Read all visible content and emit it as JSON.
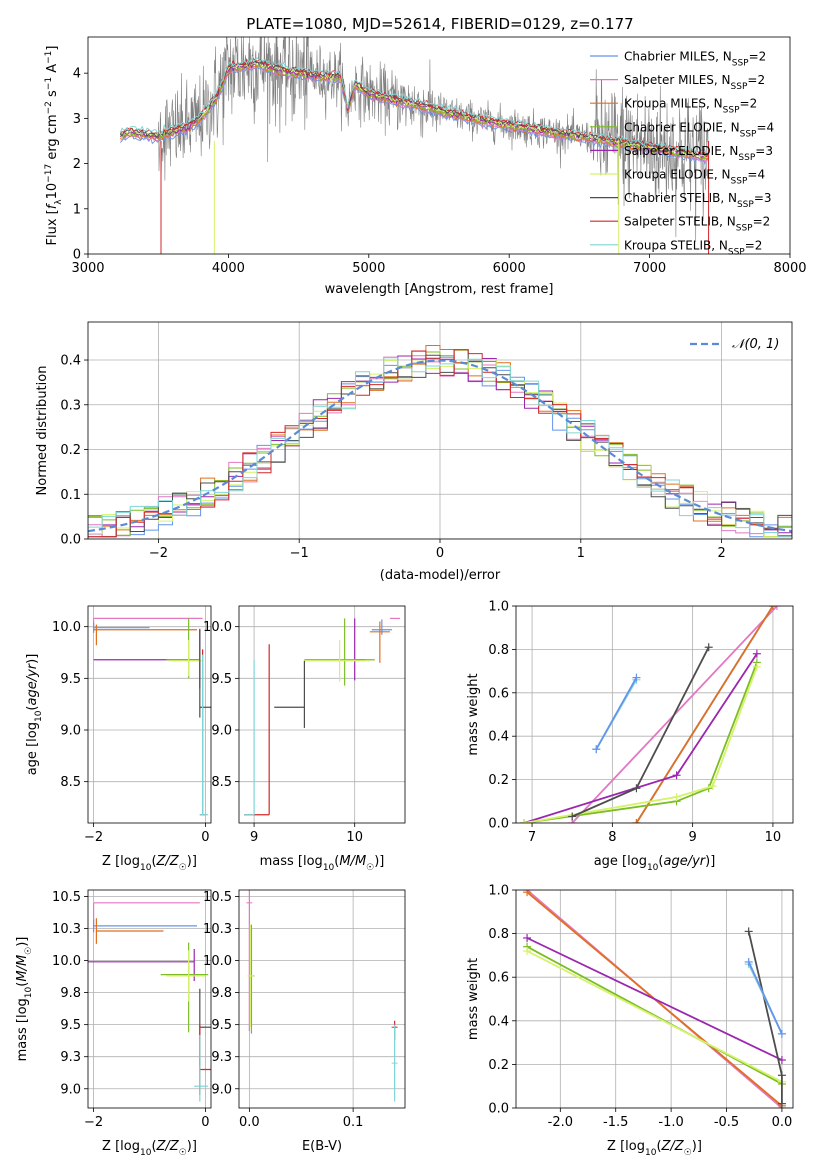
{
  "figure": {
    "title": "PLATE=1080, MJD=52614, FIBERID=0129, z=0.177"
  },
  "colors": {
    "chabrier_miles": "#6495ed",
    "salpeter_miles": "#e377c2",
    "kroupa_miles": "#e07020",
    "chabrier_elodie": "#7cbd25",
    "salpeter_elodie": "#9b27b0",
    "kroupa_elodie": "#d4f26a",
    "chabrier_stelib": "#4d4d4d",
    "salpeter_stelib": "#d62728",
    "kroupa_stelib": "#7ed6d6",
    "data_gray": "#808080",
    "normal_curve": "#5b8bd6"
  },
  "chart_data": [
    {
      "id": "spectrum",
      "type": "line",
      "title": "PLATE=1080, MJD=52614, FIBERID=0129, z=0.177",
      "xlabel": "wavelength [Angstrom, rest frame]",
      "ylabel": "Flux [f_λ 10^-17 erg cm^-2 s^-1 A^-1]",
      "xlim": [
        3000,
        8000
      ],
      "ylim": [
        0,
        4.8
      ],
      "xticks": [
        3000,
        4000,
        5000,
        6000,
        7000,
        8000
      ],
      "yticks": [
        0,
        1,
        2,
        3,
        4
      ],
      "legend_position": "top-right",
      "legend": [
        {
          "label": "Chabrier MILES",
          "nssp": "2",
          "color_key": "chabrier_miles"
        },
        {
          "label": "Salpeter MILES",
          "nssp": "2",
          "color_key": "salpeter_miles"
        },
        {
          "label": "Kroupa MILES",
          "nssp": "2",
          "color_key": "kroupa_miles"
        },
        {
          "label": "Chabrier ELODIE",
          "nssp": "4",
          "color_key": "chabrier_elodie"
        },
        {
          "label": "Salpeter ELODIE",
          "nssp": "3",
          "color_key": "salpeter_elodie"
        },
        {
          "label": "Kroupa ELODIE",
          "nssp": "4",
          "color_key": "kroupa_elodie"
        },
        {
          "label": "Chabrier STELIB",
          "nssp": "3",
          "color_key": "chabrier_stelib"
        },
        {
          "label": "Salpeter STELIB",
          "nssp": "2",
          "color_key": "salpeter_stelib"
        },
        {
          "label": "Kroupa STELIB",
          "nssp": "2",
          "color_key": "kroupa_stelib"
        }
      ],
      "model_continuum": {
        "x": [
          3230,
          3300,
          3400,
          3500,
          3600,
          3700,
          3800,
          3900,
          3950,
          4000,
          4100,
          4200,
          4400,
          4600,
          4800,
          4850,
          4900,
          5000,
          5200,
          5400,
          5600,
          5800,
          6000,
          6200,
          6400,
          6600,
          6800,
          7000,
          7200,
          7400
        ],
        "y": [
          2.6,
          2.7,
          2.65,
          2.6,
          2.7,
          2.8,
          3.0,
          3.4,
          3.7,
          4.1,
          4.15,
          4.2,
          4.05,
          3.95,
          3.9,
          3.2,
          3.75,
          3.55,
          3.4,
          3.25,
          3.1,
          2.95,
          2.85,
          2.75,
          2.65,
          2.55,
          2.45,
          2.35,
          2.25,
          2.15
        ]
      }
    },
    {
      "id": "residuals",
      "type": "line",
      "xlabel": "(data-model)/error",
      "ylabel": "Normed distribution",
      "xlim": [
        -2.5,
        2.5
      ],
      "ylim": [
        0,
        0.485
      ],
      "xticks": [
        -2,
        -1,
        0,
        1,
        2
      ],
      "yticks": [
        0.0,
        0.1,
        0.2,
        0.3,
        0.4
      ],
      "grid": true,
      "legend_position": "top-right",
      "legend": [
        {
          "label": "𝒩(0, 1)",
          "color_key": "normal_curve",
          "style": "dashed"
        }
      ],
      "bin_width": 0.1
    },
    {
      "id": "age_vs_Z",
      "type": "scatter",
      "xlabel": "Z [log10(Z/Z☉)]",
      "ylabel": "age  [log10(age/yr)]",
      "xlim": [
        -2.1,
        0.1
      ],
      "ylim": [
        8.1,
        10.2
      ],
      "xticks": [
        -2,
        0
      ],
      "yticks": [
        8.5,
        9.0,
        9.5,
        10.0
      ],
      "grid": true,
      "points": [
        {
          "color_key": "salpeter_miles",
          "x": -2.0,
          "y": 10.08,
          "xerr": [
            0.0,
            1.95
          ],
          "yerr": [
            0.1,
            0.0
          ]
        },
        {
          "color_key": "chabrier_miles",
          "x": -2.0,
          "y": 9.99,
          "xerr": [
            0.0,
            1.0
          ],
          "yerr": [
            0.05,
            0.05
          ]
        },
        {
          "color_key": "kroupa_miles",
          "x": -1.95,
          "y": 9.97,
          "xerr": [
            0.05,
            1.8
          ],
          "yerr": [
            0.15,
            0.05
          ]
        },
        {
          "color_key": "salpeter_elodie",
          "x": -0.1,
          "y": 9.68,
          "xerr": [
            1.9,
            0.0
          ],
          "yerr": [
            0.28,
            0.3
          ]
        },
        {
          "color_key": "chabrier_elodie",
          "x": -0.3,
          "y": 9.68,
          "xerr": [
            0.4,
            0.2
          ],
          "yerr": [
            0.18,
            0.4
          ]
        },
        {
          "color_key": "kroupa_elodie",
          "x": -0.3,
          "y": 9.67,
          "xerr": [
            0.35,
            0.25
          ],
          "yerr": [
            0.15,
            0.2
          ]
        },
        {
          "color_key": "chabrier_stelib",
          "x": -0.1,
          "y": 9.22,
          "xerr": [
            0.0,
            0.2
          ],
          "yerr": [
            0.1,
            0.75
          ]
        },
        {
          "color_key": "salpeter_stelib",
          "x": -0.05,
          "y": 8.18,
          "xerr": [
            0.05,
            0.05
          ],
          "yerr": [
            0.0,
            1.6
          ]
        },
        {
          "color_key": "kroupa_stelib",
          "x": -0.05,
          "y": 8.18,
          "xerr": [
            0.05,
            0.1
          ],
          "yerr": [
            0.0,
            1.55
          ]
        }
      ]
    },
    {
      "id": "age_vs_mass",
      "type": "scatter",
      "xlabel": "mass [log10(M/M☉)]",
      "ylabel": "",
      "xlim": [
        8.85,
        10.5
      ],
      "ylim": [
        8.1,
        10.2
      ],
      "xticks": [
        9,
        10
      ],
      "yticks": [
        8.5,
        9.0,
        9.5,
        10.0
      ],
      "grid": true,
      "points": [
        {
          "color_key": "salpeter_miles",
          "x": 10.45,
          "y": 10.08,
          "xerr": [
            0.1,
            0.0
          ],
          "yerr": [
            0.0,
            0.0
          ]
        },
        {
          "color_key": "chabrier_miles",
          "x": 10.27,
          "y": 9.97,
          "xerr": [
            0.1,
            0.1
          ],
          "yerr": [
            0.05,
            0.1
          ]
        },
        {
          "color_key": "kroupa_miles",
          "x": 10.25,
          "y": 9.95,
          "xerr": [
            0.1,
            0.1
          ],
          "yerr": [
            0.3,
            0.1
          ]
        },
        {
          "color_key": "salpeter_elodie",
          "x": 10.0,
          "y": 9.68,
          "xerr": [
            0.0,
            0.1
          ],
          "yerr": [
            0.2,
            0.4
          ]
        },
        {
          "color_key": "chabrier_elodie",
          "x": 9.9,
          "y": 9.68,
          "xerr": [
            0.4,
            0.3
          ],
          "yerr": [
            0.25,
            0.4
          ]
        },
        {
          "color_key": "kroupa_elodie",
          "x": 9.85,
          "y": 9.67,
          "xerr": [
            0.35,
            0.3
          ],
          "yerr": [
            0.2,
            0.2
          ]
        },
        {
          "color_key": "chabrier_stelib",
          "x": 9.5,
          "y": 9.22,
          "xerr": [
            0.3,
            0.0
          ],
          "yerr": [
            0.2,
            0.45
          ]
        },
        {
          "color_key": "salpeter_stelib",
          "x": 9.15,
          "y": 8.18,
          "xerr": [
            0.25,
            0.0
          ],
          "yerr": [
            0.0,
            1.65
          ]
        },
        {
          "color_key": "kroupa_stelib",
          "x": 9.0,
          "y": 8.18,
          "xerr": [
            0.1,
            0.0
          ],
          "yerr": [
            0.0,
            1.5
          ]
        }
      ]
    },
    {
      "id": "mass_weight_vs_age",
      "type": "line",
      "xlabel": "age  [log10(age/yr)]",
      "ylabel": "mass weight",
      "xlim": [
        6.8,
        10.25
      ],
      "ylim": [
        0,
        1.0
      ],
      "xticks": [
        7,
        8,
        9,
        10
      ],
      "yticks": [
        0.0,
        0.2,
        0.4,
        0.6,
        0.8,
        1.0
      ],
      "grid": true,
      "series": [
        {
          "color_key": "salpeter_miles",
          "x": [
            7.5,
            10.05
          ],
          "y": [
            0.0,
            1.0
          ]
        },
        {
          "color_key": "chabrier_miles",
          "x": [
            8.3,
            10.0
          ],
          "y": [
            0.0,
            1.0
          ]
        },
        {
          "color_key": "kroupa_miles",
          "x": [
            8.3,
            10.0
          ],
          "y": [
            0.0,
            1.0
          ]
        },
        {
          "color_key": "salpeter_elodie",
          "x": [
            6.9,
            8.8,
            9.8
          ],
          "y": [
            0.0,
            0.22,
            0.78
          ]
        },
        {
          "color_key": "chabrier_elodie",
          "x": [
            6.9,
            8.8,
            9.2,
            9.8
          ],
          "y": [
            0.0,
            0.1,
            0.16,
            0.74
          ]
        },
        {
          "color_key": "kroupa_elodie",
          "x": [
            6.9,
            8.8,
            9.25,
            9.8
          ],
          "y": [
            0.0,
            0.12,
            0.17,
            0.72
          ]
        },
        {
          "color_key": "chabrier_stelib",
          "x": [
            7.5,
            8.3,
            9.2
          ],
          "y": [
            0.03,
            0.16,
            0.81
          ]
        },
        {
          "color_key": "kroupa_stelib",
          "x": [
            7.8,
            8.3
          ],
          "y": [
            0.34,
            0.66
          ]
        },
        {
          "color_key": "chabrier_miles",
          "x": [
            7.8,
            8.3
          ],
          "y": [
            0.34,
            0.67
          ]
        }
      ]
    },
    {
      "id": "mass_vs_Z",
      "type": "scatter",
      "xlabel": "Z [log10(Z/Z☉)]",
      "ylabel": "mass [log10(M/M☉)]",
      "xlim": [
        -2.1,
        0.1
      ],
      "ylim": [
        8.85,
        10.55
      ],
      "xticks": [
        -2,
        0
      ],
      "yticks": [
        9.0,
        9.25,
        9.5,
        9.75,
        10.0,
        10.25,
        10.5
      ],
      "grid": true,
      "points": [
        {
          "color_key": "salpeter_miles",
          "x": -2.0,
          "y": 10.45,
          "xerr": [
            0.0,
            1.9
          ],
          "yerr": [
            0.2,
            0.0
          ]
        },
        {
          "color_key": "chabrier_miles",
          "x": -2.0,
          "y": 10.27,
          "xerr": [
            0.0,
            1.85
          ],
          "yerr": [
            0.05,
            0.05
          ]
        },
        {
          "color_key": "kroupa_miles",
          "x": -1.95,
          "y": 10.23,
          "xerr": [
            0.0,
            1.2
          ],
          "yerr": [
            0.1,
            0.1
          ]
        },
        {
          "color_key": "salpeter_elodie",
          "x": -0.2,
          "y": 9.99,
          "xerr": [
            1.9,
            0.0
          ],
          "yerr": [
            0.15,
            0.1
          ]
        },
        {
          "color_key": "chabrier_elodie",
          "x": -0.3,
          "y": 9.89,
          "xerr": [
            0.5,
            0.35
          ],
          "yerr": [
            0.45,
            0.25
          ]
        },
        {
          "color_key": "kroupa_elodie",
          "x": -0.3,
          "y": 9.88,
          "xerr": [
            0.4,
            0.3
          ],
          "yerr": [
            0.2,
            0.2
          ]
        },
        {
          "color_key": "chabrier_stelib",
          "x": -0.1,
          "y": 9.48,
          "xerr": [
            0.0,
            0.2
          ],
          "yerr": [
            0.3,
            0.3
          ]
        },
        {
          "color_key": "salpeter_stelib",
          "x": -0.1,
          "y": 9.15,
          "xerr": [
            0.0,
            0.3
          ],
          "yerr": [
            0.2,
            0.35
          ]
        },
        {
          "color_key": "kroupa_stelib",
          "x": -0.1,
          "y": 9.02,
          "xerr": [
            0.1,
            0.15
          ],
          "yerr": [
            0.12,
            0.4
          ]
        }
      ]
    },
    {
      "id": "mass_vs_ebv",
      "type": "scatter",
      "xlabel": "E(B-V)",
      "ylabel": "",
      "xlim": [
        -0.01,
        0.15
      ],
      "ylim": [
        8.85,
        10.55
      ],
      "xticks": [
        0.0,
        0.1
      ],
      "yticks": [
        9.0,
        9.25,
        9.5,
        9.75,
        10.0,
        10.25,
        10.5
      ],
      "grid": true,
      "points": [
        {
          "color_key": "salpeter_miles",
          "x": 0.0,
          "y": 10.45,
          "xerr": [
            0.0,
            0.0
          ],
          "yerr": [
            1.0,
            0.1
          ]
        },
        {
          "color_key": "chabrier_elodie",
          "x": 0.002,
          "y": 9.88,
          "xerr": [
            0.0,
            0.0
          ],
          "yerr": [
            0.45,
            0.4
          ]
        },
        {
          "color_key": "kroupa_elodie",
          "x": 0.001,
          "y": 9.88,
          "xerr": [
            0.0,
            0.0
          ],
          "yerr": [
            0.4,
            0.4
          ]
        },
        {
          "color_key": "salpeter_stelib",
          "x": 0.14,
          "y": 9.48,
          "xerr": [
            0.0,
            0.0
          ],
          "yerr": [
            0.1,
            0.05
          ]
        },
        {
          "color_key": "kroupa_stelib",
          "x": 0.14,
          "y": 9.2,
          "xerr": [
            0.0,
            0.0
          ],
          "yerr": [
            0.3,
            0.3
          ]
        }
      ]
    },
    {
      "id": "mass_weight_vs_Z",
      "type": "line",
      "xlabel": "Z [log10(Z/Z☉)]",
      "ylabel": "mass weight",
      "xlim": [
        -2.4,
        0.1
      ],
      "ylim": [
        0,
        1.0
      ],
      "xticks": [
        -2.0,
        -1.5,
        -1.0,
        -0.5,
        0.0
      ],
      "yticks": [
        0.0,
        0.2,
        0.4,
        0.6,
        0.8,
        1.0
      ],
      "grid": true,
      "series": [
        {
          "color_key": "salpeter_miles",
          "x": [
            -2.3,
            0.0
          ],
          "y": [
            1.0,
            0.0
          ]
        },
        {
          "color_key": "kroupa_miles",
          "x": [
            -2.3,
            0.0
          ],
          "y": [
            0.99,
            0.01
          ]
        },
        {
          "color_key": "salpeter_elodie",
          "x": [
            -2.3,
            0.0
          ],
          "y": [
            0.78,
            0.22
          ]
        },
        {
          "color_key": "chabrier_elodie",
          "x": [
            -2.3,
            0.0
          ],
          "y": [
            0.74,
            0.11
          ]
        },
        {
          "color_key": "kroupa_elodie",
          "x": [
            -2.3,
            0.0
          ],
          "y": [
            0.72,
            0.12
          ]
        },
        {
          "color_key": "chabrier_stelib",
          "x": [
            -0.3,
            0.0,
            0.0
          ],
          "y": [
            0.81,
            0.15,
            0.02
          ]
        },
        {
          "color_key": "kroupa_stelib",
          "x": [
            -0.3,
            0.0
          ],
          "y": [
            0.66,
            0.34
          ]
        },
        {
          "color_key": "chabrier_miles",
          "x": [
            -0.3,
            0.0
          ],
          "y": [
            0.67,
            0.34
          ]
        }
      ]
    }
  ]
}
